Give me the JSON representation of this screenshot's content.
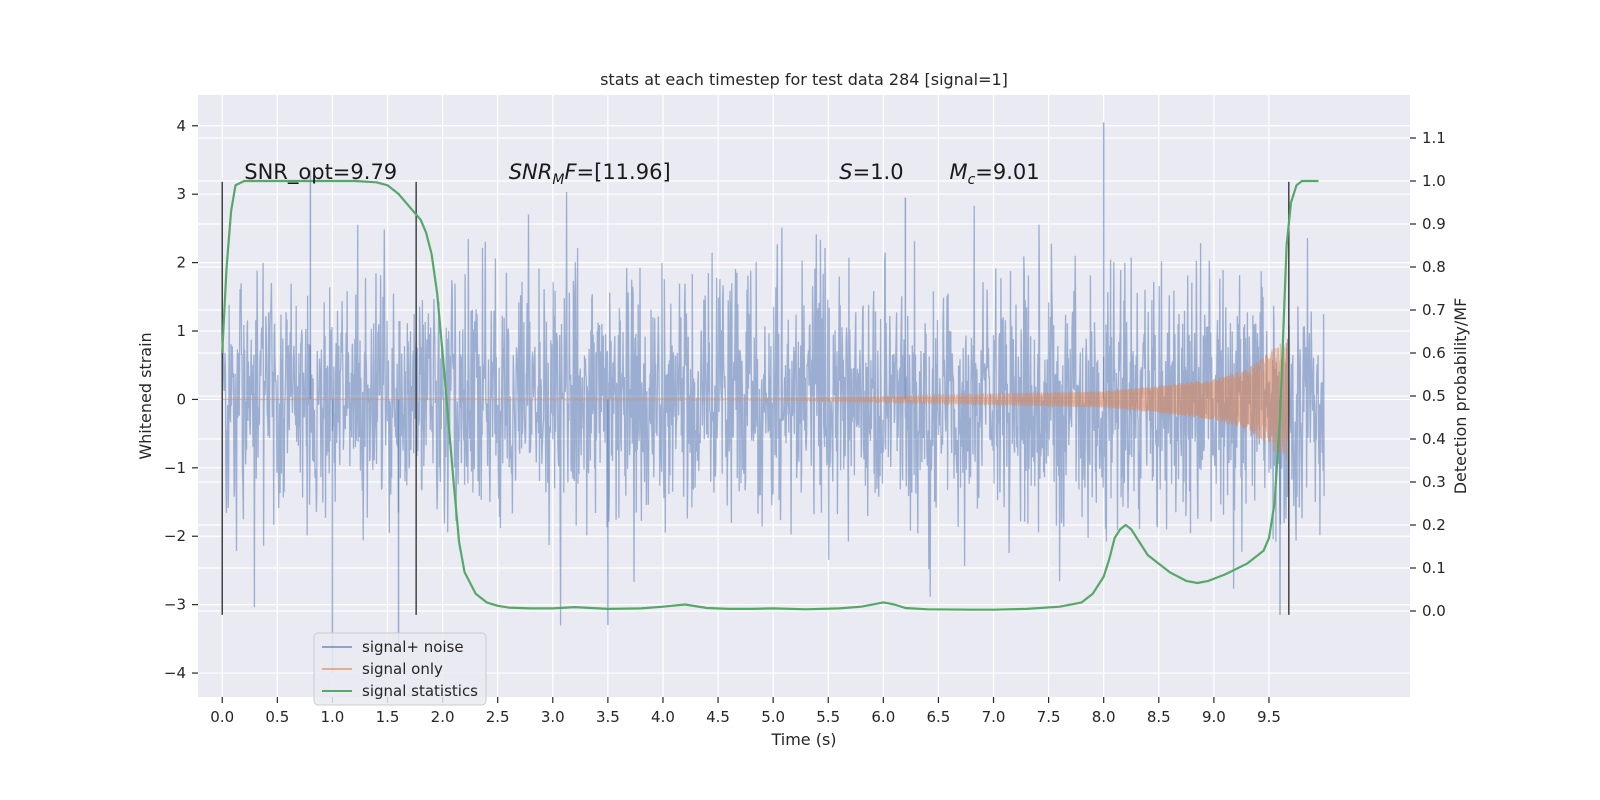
{
  "chart_data": {
    "type": "line",
    "title": "stats at each timestep for test data 284 [signal=1]",
    "xlabel": "Time (s)",
    "ylabel_left": "Whitened strain",
    "ylabel_right": "Detection probability/MF",
    "xlim": [
      -0.22,
      10.78
    ],
    "ylim_left": [
      -4.35,
      4.45
    ],
    "ylim_right": [
      -0.2,
      1.2
    ],
    "x_ticks": [
      0.0,
      0.5,
      1.0,
      1.5,
      2.0,
      2.5,
      3.0,
      3.5,
      4.0,
      4.5,
      5.0,
      5.5,
      6.0,
      6.5,
      7.0,
      7.5,
      8.0,
      8.5,
      9.0,
      9.5
    ],
    "x_tick_labels": [
      "0.0",
      "0.5",
      "1.0",
      "1.5",
      "2.0",
      "2.5",
      "3.0",
      "3.5",
      "4.0",
      "4.5",
      "5.0",
      "5.5",
      "6.0",
      "6.5",
      "7.0",
      "7.5",
      "8.0",
      "8.5",
      "9.0",
      "9.5"
    ],
    "y_left_ticks": [
      4,
      3,
      2,
      1,
      0,
      -1,
      -2,
      -3,
      -4
    ],
    "y_left_tick_labels": [
      "4",
      "3",
      "2",
      "1",
      "0",
      "−1",
      "−2",
      "−3",
      "−4"
    ],
    "y_right_ticks": [
      1.1,
      1.0,
      0.9,
      0.8,
      0.7,
      0.6,
      0.5,
      0.4,
      0.3,
      0.2,
      0.1,
      0.0
    ],
    "y_right_tick_labels": [
      "1.1",
      "1.0",
      "0.9",
      "0.8",
      "0.7",
      "0.6",
      "0.5",
      "0.4",
      "0.3",
      "0.2",
      "0.1",
      "0.0"
    ],
    "grid": true,
    "legend_position": "lower-left",
    "series": [
      {
        "name": "signal+ noise",
        "axis": "left",
        "color": "#4c72b0",
        "kind": "noise",
        "x_range": [
          0.0,
          10.0
        ],
        "envelope_std": 0.9,
        "approx_peaks": [
          4.05,
          3.35,
          2.95,
          -3.55,
          -3.3,
          -3.15,
          -4.0
        ]
      },
      {
        "name": "signal only",
        "axis": "left",
        "color": "#dd8452",
        "kind": "chirp",
        "x_range": [
          0.0,
          9.68
        ],
        "amplitude_points": [
          [
            0.0,
            0.0
          ],
          [
            5.0,
            0.01
          ],
          [
            6.0,
            0.04
          ],
          [
            7.0,
            0.08
          ],
          [
            8.0,
            0.12
          ],
          [
            8.5,
            0.2
          ],
          [
            9.0,
            0.3
          ],
          [
            9.3,
            0.45
          ],
          [
            9.5,
            0.7
          ],
          [
            9.68,
            0.9
          ]
        ]
      },
      {
        "name": "signal statistics",
        "axis": "right",
        "color": "#55a868",
        "x": [
          0.0,
          0.04,
          0.08,
          0.12,
          0.2,
          0.3,
          0.5,
          0.8,
          1.0,
          1.2,
          1.4,
          1.5,
          1.6,
          1.7,
          1.8,
          1.85,
          1.9,
          1.95,
          2.0,
          2.05,
          2.1,
          2.15,
          2.2,
          2.3,
          2.4,
          2.5,
          2.6,
          2.8,
          3.0,
          3.2,
          3.5,
          3.8,
          4.0,
          4.2,
          4.4,
          4.6,
          4.8,
          5.0,
          5.3,
          5.6,
          5.8,
          6.0,
          6.1,
          6.2,
          6.4,
          6.8,
          7.0,
          7.3,
          7.6,
          7.8,
          7.9,
          8.0,
          8.05,
          8.1,
          8.15,
          8.2,
          8.25,
          8.3,
          8.4,
          8.6,
          8.75,
          8.85,
          8.95,
          9.1,
          9.3,
          9.45,
          9.5,
          9.55,
          9.6,
          9.63,
          9.66,
          9.7,
          9.75,
          9.8,
          9.85,
          9.9,
          9.95
        ],
        "y": [
          0.6,
          0.8,
          0.93,
          0.99,
          1.0,
          1.0,
          1.0,
          1.0,
          1.0,
          1.0,
          0.997,
          0.99,
          0.97,
          0.94,
          0.91,
          0.88,
          0.83,
          0.74,
          0.6,
          0.45,
          0.3,
          0.16,
          0.09,
          0.04,
          0.02,
          0.012,
          0.008,
          0.006,
          0.006,
          0.009,
          0.005,
          0.006,
          0.01,
          0.015,
          0.007,
          0.005,
          0.005,
          0.006,
          0.004,
          0.006,
          0.01,
          0.02,
          0.015,
          0.007,
          0.004,
          0.003,
          0.003,
          0.005,
          0.01,
          0.02,
          0.04,
          0.08,
          0.12,
          0.17,
          0.19,
          0.2,
          0.19,
          0.17,
          0.13,
          0.09,
          0.07,
          0.065,
          0.07,
          0.085,
          0.11,
          0.14,
          0.17,
          0.25,
          0.45,
          0.65,
          0.85,
          0.95,
          0.99,
          1.0,
          1.0,
          1.0,
          1.0
        ]
      }
    ],
    "vertical_lines": [
      0.0,
      1.76,
      9.68
    ],
    "vertical_line_range": [
      -3.15,
      3.18
    ],
    "annotations": [
      {
        "kind": "plain",
        "text": "SNR_opt=9.79",
        "x": 0.2,
        "y": 3.22
      },
      {
        "kind": "sub",
        "main": "SNR",
        "sub": "M",
        "rest": "F=[11.96]",
        "x": 2.6,
        "y": 3.22
      },
      {
        "kind": "italic",
        "main": "S",
        "rest": "=1.0",
        "x": 5.6,
        "y": 3.22
      },
      {
        "kind": "sub",
        "main": "M",
        "sub": "c",
        "rest": "=9.01",
        "x": 6.6,
        "y": 3.22
      }
    ]
  }
}
